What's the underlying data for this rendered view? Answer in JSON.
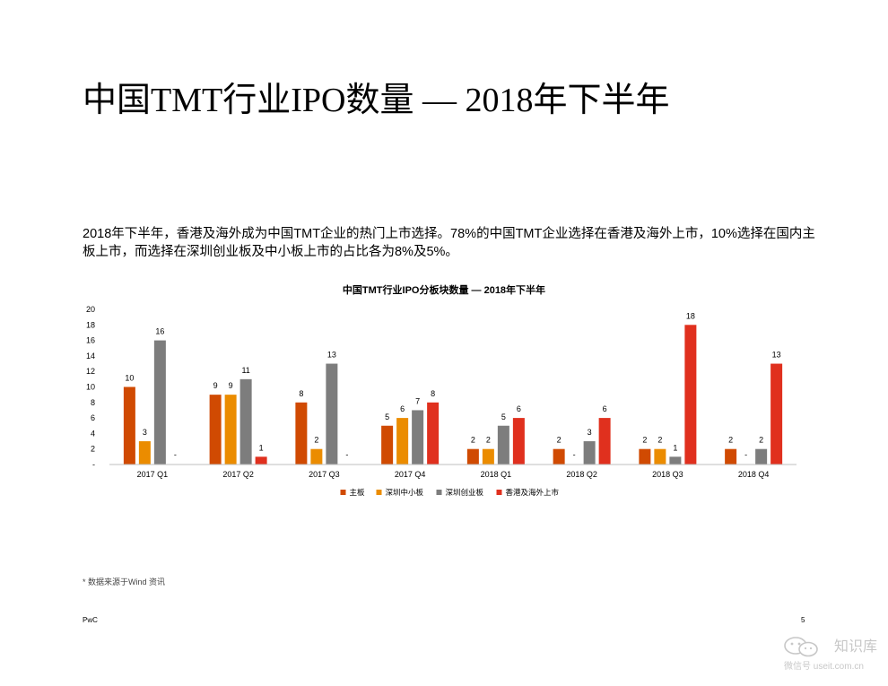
{
  "page": {
    "title": "中国TMT行业IPO数量 — 2018年下半年",
    "intro": "2018年下半年，香港及海外成为中国TMT企业的热门上市选择。78%的中国TMT企业选择在香港及海外上市，10%选择在国内主板上市，而选择在深圳创业板及中小板上市的占比各为8%及5%。",
    "footnote": "* 数据来源于Wind 资讯",
    "brand": "PwC",
    "page_number": "5",
    "watermark": {
      "name": "知识库",
      "account": "微信号 useit.com.cn"
    }
  },
  "chart_data": {
    "type": "bar",
    "title": "中国TMT行业IPO分板块数量 — 2018年下半年",
    "xlabel": "",
    "ylabel": "",
    "categories": [
      "2017 Q1",
      "2017 Q2",
      "2017 Q3",
      "2017 Q4",
      "2018 Q1",
      "2018 Q2",
      "2018 Q3",
      "2018 Q4"
    ],
    "ylim": [
      0,
      20
    ],
    "yticks": [
      "-",
      "2",
      "4",
      "6",
      "8",
      "10",
      "12",
      "14",
      "16",
      "18",
      "20"
    ],
    "legend_position": "bottom",
    "grid": false,
    "series": [
      {
        "name": "主板",
        "color": "#d04a02",
        "values": [
          10,
          9,
          8,
          5,
          2,
          2,
          2,
          2
        ]
      },
      {
        "name": "深圳中小板",
        "color": "#eb8c00",
        "values": [
          3,
          9,
          2,
          6,
          2,
          0,
          2,
          0
        ]
      },
      {
        "name": "深圳创业板",
        "color": "#7d7d7d",
        "values": [
          16,
          11,
          13,
          7,
          5,
          3,
          1,
          2
        ]
      },
      {
        "name": "香港及海外上市",
        "color": "#e0301e",
        "values": [
          0,
          1,
          0,
          8,
          6,
          6,
          18,
          13
        ]
      }
    ]
  }
}
